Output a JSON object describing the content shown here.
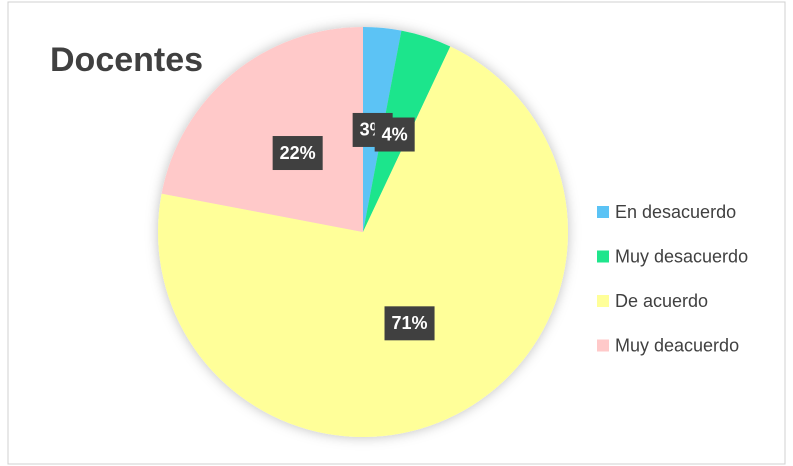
{
  "chart_data": {
    "type": "pie",
    "title": "Docentes",
    "categories": [
      "En desacuerdo",
      "Muy desacuerdo",
      "De acuerdo",
      "Muy deacuerdo"
    ],
    "values": [
      3,
      4,
      71,
      22
    ],
    "value_labels": [
      "3%",
      "4%",
      "71%",
      "22%"
    ],
    "colors": [
      "#5bc3f5",
      "#1fe58c",
      "#ffff99",
      "#ffc9c9"
    ],
    "legend": "right"
  }
}
